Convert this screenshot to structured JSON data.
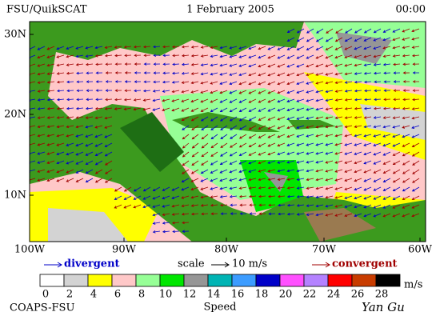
{
  "header": {
    "left": "FSU/QuikSCAT",
    "center": "1 February 2005",
    "right": "00:00"
  },
  "map": {
    "lat_labels": [
      "30N",
      "20N",
      "10N"
    ],
    "lon_labels": [
      "100W",
      "90W",
      "80W",
      "70W",
      "60W"
    ]
  },
  "legend": {
    "divergent": "divergent",
    "scale": "scale",
    "scale_value": "10 m/s",
    "convergent": "convergent"
  },
  "colorbar": {
    "title": "Speed",
    "unit": "m/s",
    "ticks": [
      0,
      2,
      4,
      6,
      8,
      10,
      12,
      14,
      16,
      18,
      20,
      22,
      24,
      26,
      28
    ],
    "colors": [
      "#ffffff",
      "#d3d3d3",
      "#ffff00",
      "#ffc8c8",
      "#96ff96",
      "#00e600",
      "#969696",
      "#00b4b4",
      "#3c9cff",
      "#0000c8",
      "#ff50ff",
      "#b482ff",
      "#ff0000",
      "#c83c00",
      "#000000"
    ]
  },
  "footer": {
    "left": "COAPS-FSU",
    "right": "Yan Gu"
  }
}
